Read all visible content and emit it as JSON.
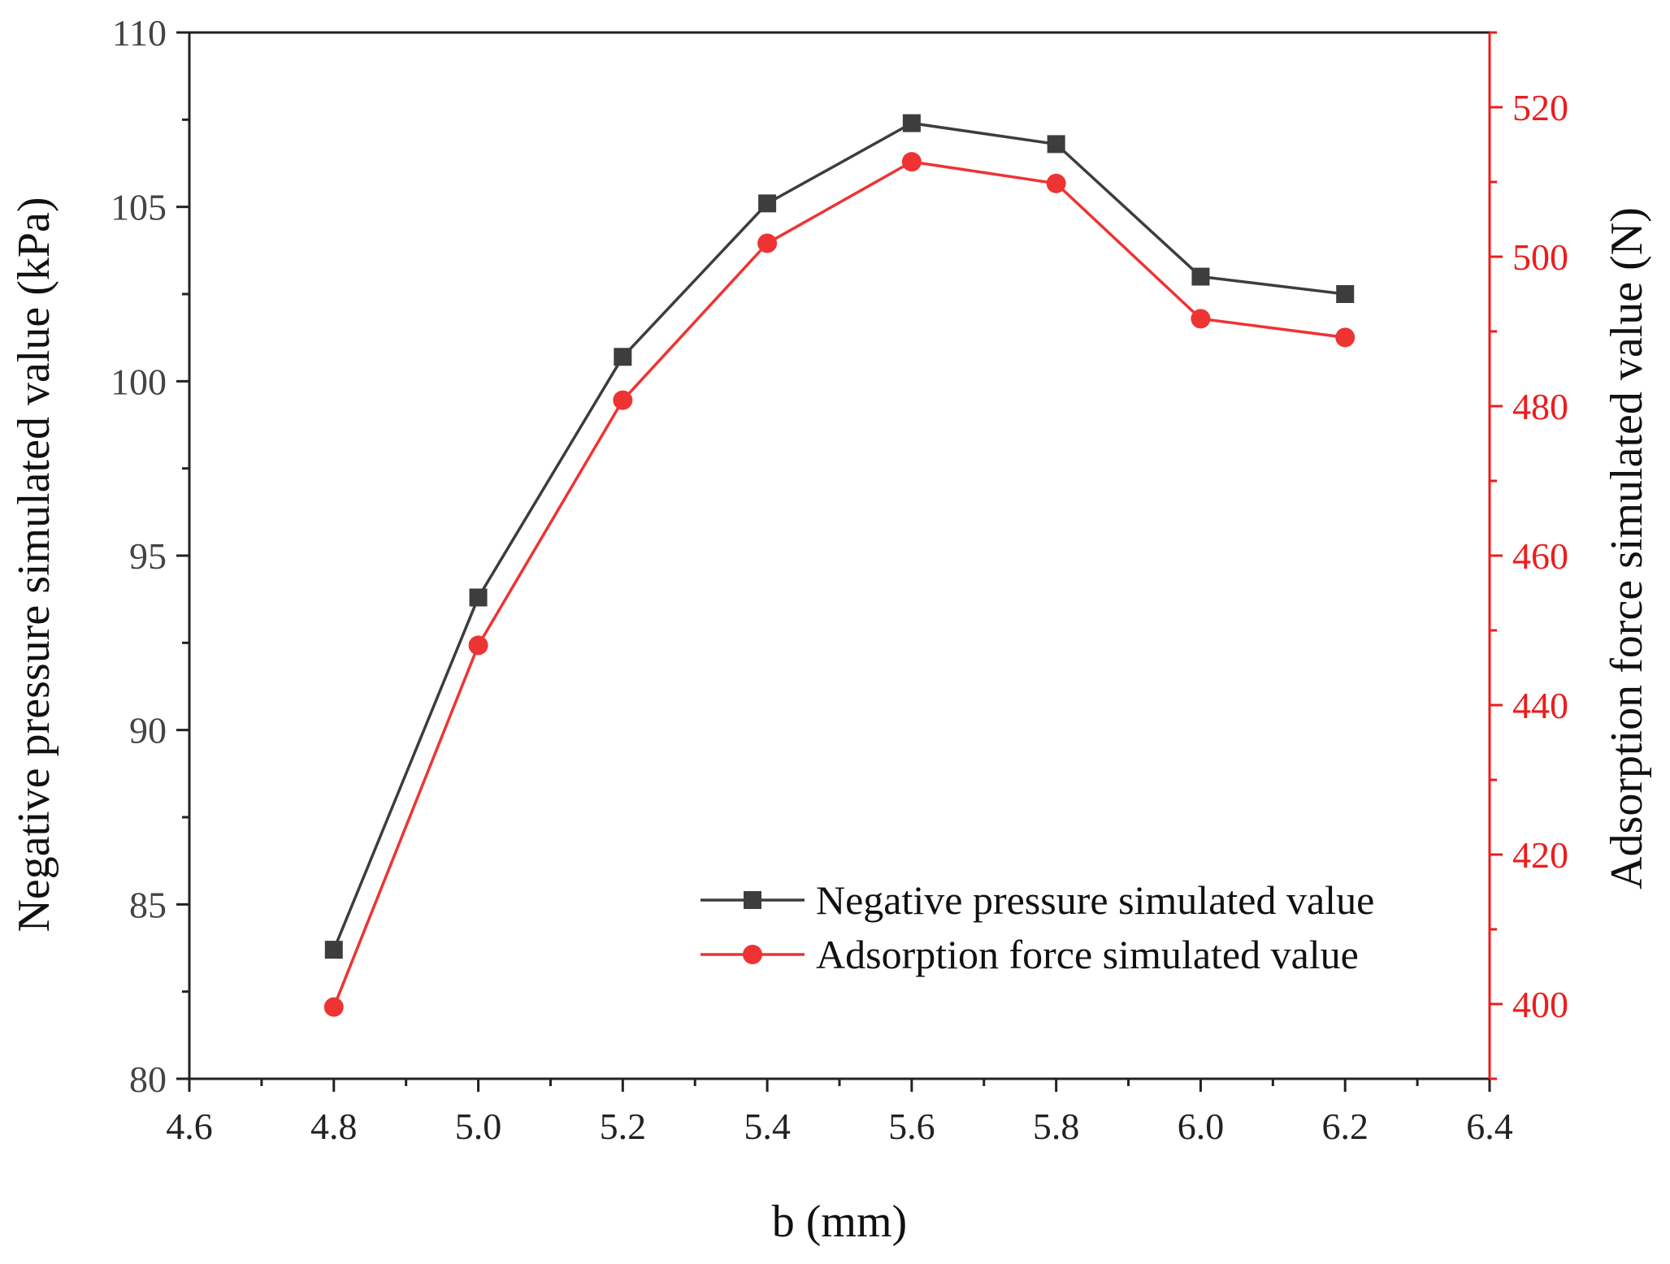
{
  "colors": {
    "left_axis": "#222222",
    "right_axis": "#ee1c1c",
    "series_pressure": "#3d3d3d",
    "series_force": "#ee3333"
  },
  "chart_data": {
    "type": "line",
    "xlabel": "b (mm)",
    "ylabel_left": "Negative pressure simulated value (kPa)",
    "ylabel_right": "Adsorption force simulated value (N)",
    "xlim": [
      4.6,
      6.4
    ],
    "xticks": [
      4.6,
      4.8,
      5.0,
      5.2,
      5.4,
      5.6,
      5.8,
      6.0,
      6.2,
      6.4
    ],
    "xtick_labels": [
      "4.6",
      "4.8",
      "5.0",
      "5.2",
      "5.4",
      "5.6",
      "5.8",
      "6.0",
      "6.2",
      "6.4"
    ],
    "ylim_left": [
      80,
      110
    ],
    "yticks_left": [
      80,
      85,
      90,
      95,
      100,
      105,
      110
    ],
    "ylim_right": [
      390,
      530
    ],
    "yticks_right": [
      400,
      420,
      440,
      460,
      480,
      500,
      520
    ],
    "legend_position": "lower-right",
    "grid": false,
    "series": [
      {
        "name": "Negative pressure simulated value",
        "axis": "left",
        "marker": "square",
        "x": [
          4.8,
          5.0,
          5.2,
          5.4,
          5.6,
          5.8,
          6.0,
          6.2
        ],
        "y": [
          83.7,
          93.8,
          100.7,
          105.1,
          107.4,
          106.8,
          103.0,
          102.5
        ]
      },
      {
        "name": "Adsorption force simulated value",
        "axis": "right",
        "marker": "circle",
        "x": [
          4.8,
          5.0,
          5.2,
          5.4,
          5.6,
          5.8,
          6.0,
          6.2
        ],
        "y": [
          399.6,
          448.0,
          480.8,
          501.8,
          512.7,
          509.8,
          491.7,
          489.2
        ]
      }
    ]
  }
}
